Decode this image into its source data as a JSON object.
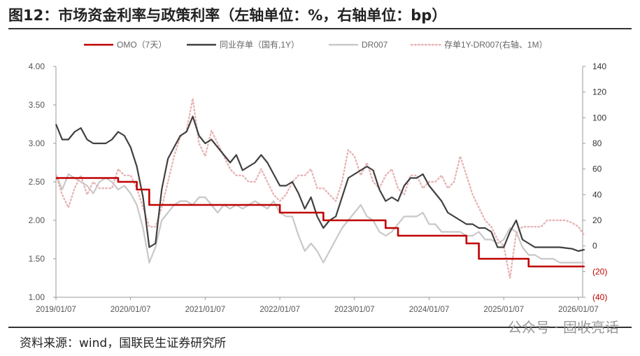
{
  "title": "图12：市场资金利率与政策利率（左轴单位：%，右轴单位：bp）",
  "source": "资料来源：wind，国联民生证券研究所",
  "watermark": "公众号 · 固收亮话",
  "chart_data": {
    "type": "line",
    "title": "",
    "legend_position": "top",
    "grid": false,
    "x_ticks": [
      "2019/01/07",
      "2020/01/07",
      "2021/01/07",
      "2022/01/07",
      "2023/01/07",
      "2024/01/07",
      "2025/01/07",
      "2026/01/07"
    ],
    "y_left": {
      "range": [
        1.0,
        4.0
      ],
      "ticks": [
        "1.00",
        "1.50",
        "2.00",
        "2.50",
        "3.00",
        "3.50",
        "4.00"
      ]
    },
    "y_right": {
      "range": [
        -40,
        140
      ],
      "ticks": [
        "(40)",
        "(20)",
        "0",
        "20",
        "40",
        "60",
        "80",
        "100",
        "120",
        "140"
      ]
    },
    "months": [
      "2019-01",
      "2019-02",
      "2019-03",
      "2019-04",
      "2019-05",
      "2019-06",
      "2019-07",
      "2019-08",
      "2019-09",
      "2019-10",
      "2019-11",
      "2019-12",
      "2020-01",
      "2020-02",
      "2020-03",
      "2020-04",
      "2020-05",
      "2020-06",
      "2020-07",
      "2020-08",
      "2020-09",
      "2020-10",
      "2020-11",
      "2020-12",
      "2021-01",
      "2021-02",
      "2021-03",
      "2021-04",
      "2021-05",
      "2021-06",
      "2021-07",
      "2021-08",
      "2021-09",
      "2021-10",
      "2021-11",
      "2021-12",
      "2022-01",
      "2022-02",
      "2022-03",
      "2022-04",
      "2022-05",
      "2022-06",
      "2022-07",
      "2022-08",
      "2022-09",
      "2022-10",
      "2022-11",
      "2022-12",
      "2023-01",
      "2023-02",
      "2023-03",
      "2023-04",
      "2023-05",
      "2023-06",
      "2023-07",
      "2023-08",
      "2023-09",
      "2023-10",
      "2023-11",
      "2023-12",
      "2024-01",
      "2024-02",
      "2024-03",
      "2024-04",
      "2024-05",
      "2024-06",
      "2024-07",
      "2024-08",
      "2024-09",
      "2024-10",
      "2024-11",
      "2024-12",
      "2025-01",
      "2025-02",
      "2025-03",
      "2025-04",
      "2025-05",
      "2025-06",
      "2025-07",
      "2025-08",
      "2025-09",
      "2025-10",
      "2025-11",
      "2025-12",
      "2026-01",
      "2026-02"
    ],
    "series": [
      {
        "name": "OMO（7天）",
        "axis": "left",
        "color": "#c00000",
        "style": "step",
        "steps": [
          [
            "2019-01",
            2.55
          ],
          [
            "2019-11",
            2.5
          ],
          [
            "2020-02",
            2.4
          ],
          [
            "2020-04",
            2.2
          ],
          [
            "2022-01",
            2.1
          ],
          [
            "2022-08",
            2.0
          ],
          [
            "2023-06",
            1.9
          ],
          [
            "2023-08",
            1.8
          ],
          [
            "2024-07",
            1.7
          ],
          [
            "2024-09",
            1.5
          ],
          [
            "2025-05",
            1.4
          ],
          [
            "2026-02",
            1.4
          ]
        ]
      },
      {
        "name": "同业存单（国有,1Y）",
        "axis": "left",
        "color": "#404040",
        "style": "solid",
        "values": [
          3.25,
          3.05,
          3.05,
          3.15,
          3.2,
          3.05,
          3.0,
          3.0,
          3.0,
          3.05,
          3.15,
          3.1,
          2.95,
          2.7,
          2.3,
          1.65,
          1.7,
          2.4,
          2.8,
          2.95,
          3.1,
          3.15,
          3.35,
          3.1,
          3.0,
          3.05,
          2.95,
          2.85,
          2.75,
          2.85,
          2.65,
          2.7,
          2.75,
          2.85,
          2.75,
          2.6,
          2.45,
          2.45,
          2.5,
          2.35,
          2.15,
          2.3,
          2.05,
          1.9,
          2.0,
          2.05,
          2.3,
          2.55,
          2.6,
          2.65,
          2.7,
          2.65,
          2.4,
          2.25,
          2.3,
          2.25,
          2.45,
          2.55,
          2.55,
          2.6,
          2.45,
          2.35,
          2.25,
          2.1,
          2.05,
          2.0,
          1.95,
          1.95,
          1.9,
          1.9,
          1.85,
          1.65,
          1.65,
          1.85,
          2.0,
          1.75,
          1.7,
          1.65,
          1.65,
          1.65,
          1.65,
          1.65,
          1.64,
          1.63,
          1.6,
          1.62
        ]
      },
      {
        "name": "DR007",
        "axis": "left",
        "color": "#c8c8c8",
        "style": "solid",
        "values": [
          2.6,
          2.4,
          2.6,
          2.55,
          2.5,
          2.45,
          2.35,
          2.5,
          2.55,
          2.5,
          2.4,
          2.45,
          2.35,
          2.2,
          1.9,
          1.45,
          1.65,
          2.0,
          2.1,
          2.2,
          2.25,
          2.25,
          2.2,
          2.3,
          2.3,
          2.2,
          2.1,
          2.2,
          2.15,
          2.2,
          2.15,
          2.2,
          2.25,
          2.2,
          2.15,
          2.25,
          2.1,
          2.05,
          2.05,
          1.8,
          1.6,
          1.7,
          1.6,
          1.45,
          1.6,
          1.75,
          1.9,
          2.0,
          2.1,
          2.2,
          2.05,
          2.0,
          1.85,
          1.8,
          1.85,
          1.95,
          2.05,
          2.05,
          2.05,
          2.1,
          1.95,
          1.95,
          1.85,
          1.85,
          1.85,
          1.85,
          1.8,
          1.8,
          1.85,
          1.75,
          1.75,
          1.7,
          1.75,
          1.9,
          1.85,
          1.65,
          1.55,
          1.55,
          1.5,
          1.5,
          1.5,
          1.45,
          1.45,
          1.45,
          1.45,
          1.45
        ]
      },
      {
        "name": "存单1Y-DR007(右轴、1M）",
        "axis": "right",
        "color": "#e8b4b4",
        "style": "dotted",
        "values": [
          55,
          40,
          30,
          45,
          55,
          40,
          50,
          45,
          45,
          45,
          60,
          55,
          55,
          45,
          30,
          15,
          15,
          30,
          50,
          70,
          85,
          90,
          115,
          80,
          70,
          90,
          80,
          70,
          60,
          55,
          55,
          50,
          50,
          60,
          50,
          40,
          35,
          40,
          50,
          55,
          55,
          60,
          45,
          45,
          40,
          35,
          50,
          75,
          70,
          55,
          65,
          50,
          45,
          55,
          60,
          45,
          40,
          55,
          55,
          45,
          50,
          50,
          55,
          45,
          50,
          70,
          55,
          40,
          30,
          20,
          15,
          5,
          0,
          -25,
          10,
          15,
          15,
          15,
          15,
          20,
          20,
          20,
          20,
          18,
          15,
          8
        ]
      }
    ]
  }
}
